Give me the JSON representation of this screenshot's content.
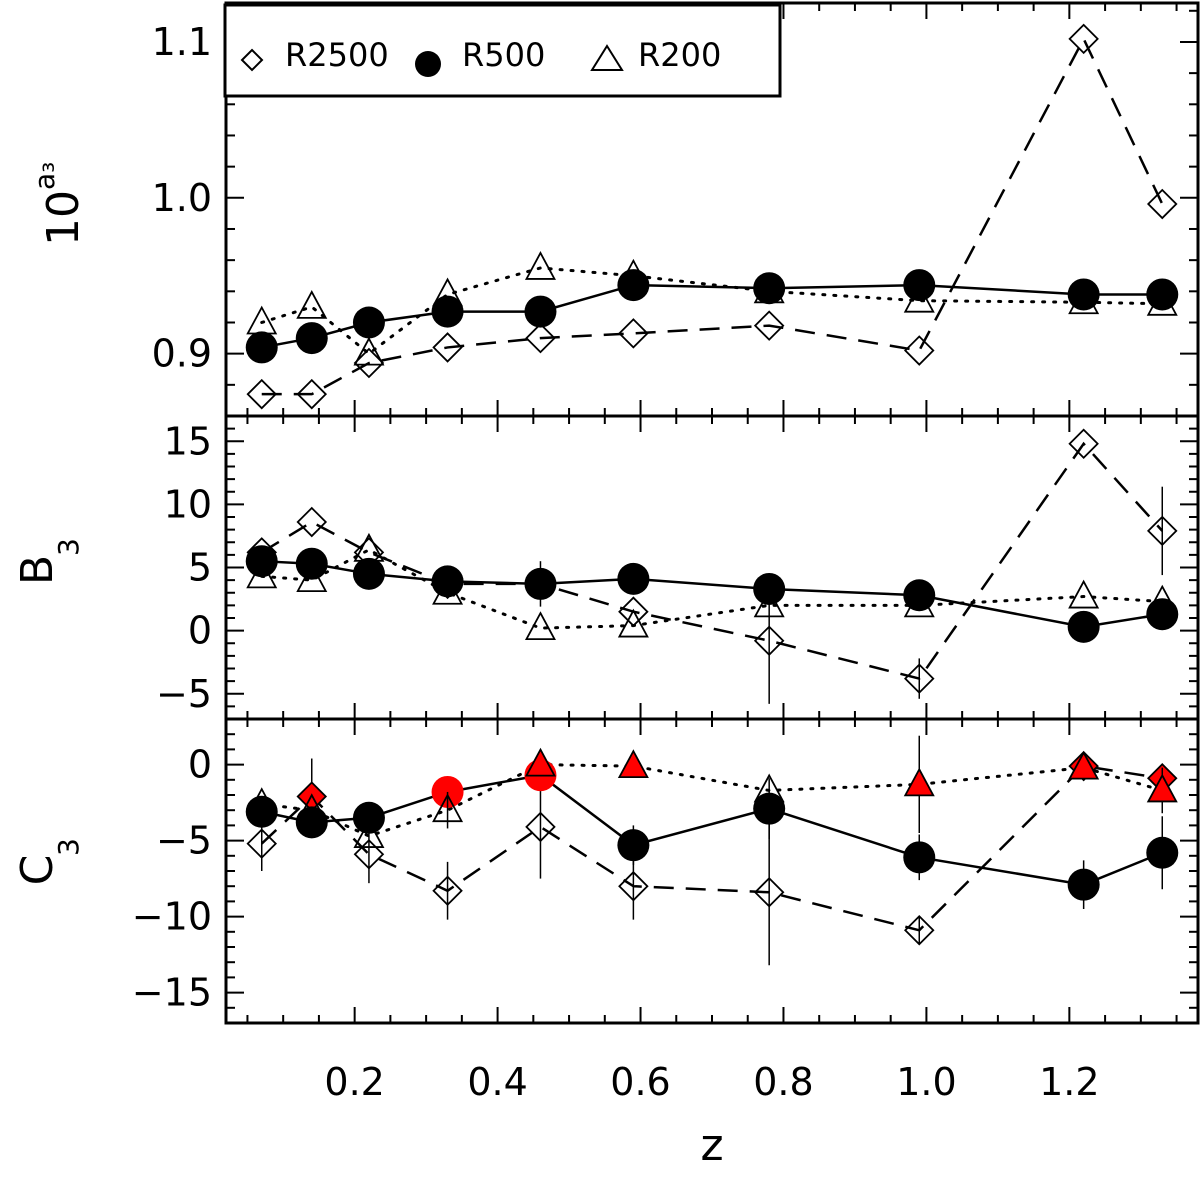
{
  "chart_data": {
    "type": "scatter",
    "xlabel": "z",
    "x_ticks": [
      {
        "value": 0.2,
        "label": "0.2"
      },
      {
        "value": 0.4,
        "label": "0.4"
      },
      {
        "value": 0.6,
        "label": "0.6"
      },
      {
        "value": 0.8,
        "label": "0.8"
      },
      {
        "value": 1.0,
        "label": "1.0"
      },
      {
        "value": 1.2,
        "label": "1.2"
      }
    ],
    "xlim": [
      0.02,
      1.38
    ],
    "legend": {
      "position": "top-left",
      "entries": [
        {
          "series": "R2500",
          "marker": "diamond-open",
          "label": "R2500"
        },
        {
          "series": "R500",
          "marker": "circle-filled",
          "label": "R500"
        },
        {
          "series": "R200",
          "marker": "triangle-open",
          "label": "R200"
        }
      ]
    },
    "panels": [
      {
        "id": "a3",
        "ylabel_main": "10",
        "ylabel_sup": "a₃",
        "ylim": [
          0.86,
          1.125
        ],
        "y_ticks": [
          {
            "value": 0.9,
            "label": "0.9"
          },
          {
            "value": 1.0,
            "label": "1.0"
          },
          {
            "value": 1.1,
            "label": "1.1"
          }
        ],
        "series": [
          {
            "name": "R2500",
            "marker": "diamond",
            "line": "dashed",
            "points": [
              {
                "x": 0.07,
                "y": 0.874
              },
              {
                "x": 0.14,
                "y": 0.874
              },
              {
                "x": 0.22,
                "y": 0.894
              },
              {
                "x": 0.33,
                "y": 0.904
              },
              {
                "x": 0.46,
                "y": 0.91
              },
              {
                "x": 0.59,
                "y": 0.913
              },
              {
                "x": 0.78,
                "y": 0.918
              },
              {
                "x": 0.99,
                "y": 0.902
              },
              {
                "x": 1.22,
                "y": 1.102
              },
              {
                "x": 1.33,
                "y": 0.996
              }
            ]
          },
          {
            "name": "R500",
            "marker": "circle",
            "line": "solid",
            "points": [
              {
                "x": 0.07,
                "y": 0.904
              },
              {
                "x": 0.14,
                "y": 0.91
              },
              {
                "x": 0.22,
                "y": 0.92
              },
              {
                "x": 0.33,
                "y": 0.927
              },
              {
                "x": 0.46,
                "y": 0.927
              },
              {
                "x": 0.59,
                "y": 0.944
              },
              {
                "x": 0.78,
                "y": 0.942
              },
              {
                "x": 0.99,
                "y": 0.944
              },
              {
                "x": 1.22,
                "y": 0.938
              },
              {
                "x": 1.33,
                "y": 0.938
              }
            ]
          },
          {
            "name": "R200",
            "marker": "triangle",
            "line": "dotted",
            "points": [
              {
                "x": 0.07,
                "y": 0.92
              },
              {
                "x": 0.14,
                "y": 0.93
              },
              {
                "x": 0.22,
                "y": 0.9
              },
              {
                "x": 0.33,
                "y": 0.938
              },
              {
                "x": 0.46,
                "y": 0.955
              },
              {
                "x": 0.59,
                "y": 0.95
              },
              {
                "x": 0.78,
                "y": 0.94
              },
              {
                "x": 0.99,
                "y": 0.934
              },
              {
                "x": 1.22,
                "y": 0.933
              },
              {
                "x": 1.33,
                "y": 0.932
              }
            ]
          }
        ]
      },
      {
        "id": "B3",
        "ylabel_main": "B",
        "ylabel_sub": "3",
        "ylim": [
          -7.0,
          17.0
        ],
        "y_ticks": [
          {
            "value": -5,
            "label": "−5"
          },
          {
            "value": 0,
            "label": "0"
          },
          {
            "value": 5,
            "label": "5"
          },
          {
            "value": 10,
            "label": "10"
          },
          {
            "value": 15,
            "label": "15"
          }
        ],
        "series": [
          {
            "name": "R2500",
            "marker": "diamond",
            "line": "dashed",
            "points": [
              {
                "x": 0.07,
                "y": 6.2
              },
              {
                "x": 0.14,
                "y": 8.6
              },
              {
                "x": 0.22,
                "y": 6.2
              },
              {
                "x": 0.33,
                "y": 3.7
              },
              {
                "x": 0.46,
                "y": 3.7,
                "err": 1.8
              },
              {
                "x": 0.59,
                "y": 1.5
              },
              {
                "x": 0.78,
                "y": -0.8,
                "err": 5.0
              },
              {
                "x": 0.99,
                "y": -3.8,
                "err": 1.6
              },
              {
                "x": 1.22,
                "y": 14.8
              },
              {
                "x": 1.33,
                "y": 7.9,
                "err": 3.5
              }
            ]
          },
          {
            "name": "R500",
            "marker": "circle",
            "line": "solid",
            "points": [
              {
                "x": 0.07,
                "y": 5.5
              },
              {
                "x": 0.14,
                "y": 5.3
              },
              {
                "x": 0.22,
                "y": 4.5
              },
              {
                "x": 0.33,
                "y": 3.9
              },
              {
                "x": 0.46,
                "y": 3.7
              },
              {
                "x": 0.59,
                "y": 4.1
              },
              {
                "x": 0.78,
                "y": 3.3
              },
              {
                "x": 0.99,
                "y": 2.8
              },
              {
                "x": 1.22,
                "y": 0.3
              },
              {
                "x": 1.33,
                "y": 1.3
              }
            ]
          },
          {
            "name": "R200",
            "marker": "triangle",
            "line": "dotted",
            "points": [
              {
                "x": 0.07,
                "y": 4.3
              },
              {
                "x": 0.14,
                "y": 4.0
              },
              {
                "x": 0.22,
                "y": 6.4
              },
              {
                "x": 0.33,
                "y": 3.0
              },
              {
                "x": 0.46,
                "y": 0.2
              },
              {
                "x": 0.59,
                "y": 0.4
              },
              {
                "x": 0.78,
                "y": 2.0
              },
              {
                "x": 0.99,
                "y": 2.0
              },
              {
                "x": 1.22,
                "y": 2.7
              },
              {
                "x": 1.33,
                "y": 2.3
              }
            ]
          }
        ]
      },
      {
        "id": "C3",
        "ylabel_main": "C",
        "ylabel_sub": "3",
        "ylim": [
          -17.0,
          3.0
        ],
        "y_ticks": [
          {
            "value": -15,
            "label": "−15"
          },
          {
            "value": -10,
            "label": "−10"
          },
          {
            "value": -5,
            "label": "−5"
          },
          {
            "value": 0,
            "label": "0"
          }
        ],
        "series": [
          {
            "name": "R2500",
            "marker": "diamond",
            "line": "dashed",
            "points": [
              {
                "x": 0.07,
                "y": -5.2,
                "err": 1.8
              },
              {
                "x": 0.14,
                "y": -2.1,
                "err": 2.5,
                "red": true
              },
              {
                "x": 0.22,
                "y": -5.9,
                "err": 1.9
              },
              {
                "x": 0.33,
                "y": -8.3,
                "err": 1.9
              },
              {
                "x": 0.46,
                "y": -4.1,
                "err": 3.4
              },
              {
                "x": 0.59,
                "y": -8.0,
                "err": 2.2
              },
              {
                "x": 0.78,
                "y": -8.4,
                "err": 4.8
              },
              {
                "x": 0.99,
                "y": -10.9,
                "err": 0.9
              },
              {
                "x": 1.22,
                "y": -0.1,
                "red": true
              },
              {
                "x": 1.33,
                "y": -0.9,
                "red": true
              }
            ]
          },
          {
            "name": "R500",
            "marker": "circle",
            "line": "solid",
            "points": [
              {
                "x": 0.07,
                "y": -3.1
              },
              {
                "x": 0.14,
                "y": -3.8
              },
              {
                "x": 0.22,
                "y": -3.5
              },
              {
                "x": 0.33,
                "y": -1.8,
                "red": true
              },
              {
                "x": 0.46,
                "y": -0.7,
                "red": true
              },
              {
                "x": 0.59,
                "y": -5.3,
                "err": 1.3
              },
              {
                "x": 0.78,
                "y": -2.9,
                "err": 2.0
              },
              {
                "x": 0.99,
                "y": -6.1,
                "err": 1.5
              },
              {
                "x": 1.22,
                "y": -7.9,
                "err": 1.6
              },
              {
                "x": 1.33,
                "y": -5.8,
                "err": 2.4
              }
            ]
          },
          {
            "name": "R200",
            "marker": "triangle",
            "line": "dotted",
            "points": [
              {
                "x": 0.07,
                "y": -2.6
              },
              {
                "x": 0.14,
                "y": -3.0
              },
              {
                "x": 0.22,
                "y": -4.7
              },
              {
                "x": 0.33,
                "y": -3.0,
                "err": 1.2
              },
              {
                "x": 0.46,
                "y": 0.0,
                "red": true
              },
              {
                "x": 0.59,
                "y": -0.1,
                "red": true
              },
              {
                "x": 0.78,
                "y": -1.7
              },
              {
                "x": 0.99,
                "y": -1.3,
                "err": 3.2,
                "red": true
              },
              {
                "x": 1.22,
                "y": -0.2,
                "red": true
              },
              {
                "x": 1.33,
                "y": -1.7,
                "err": 1.5,
                "red": true
              }
            ]
          }
        ]
      }
    ]
  }
}
